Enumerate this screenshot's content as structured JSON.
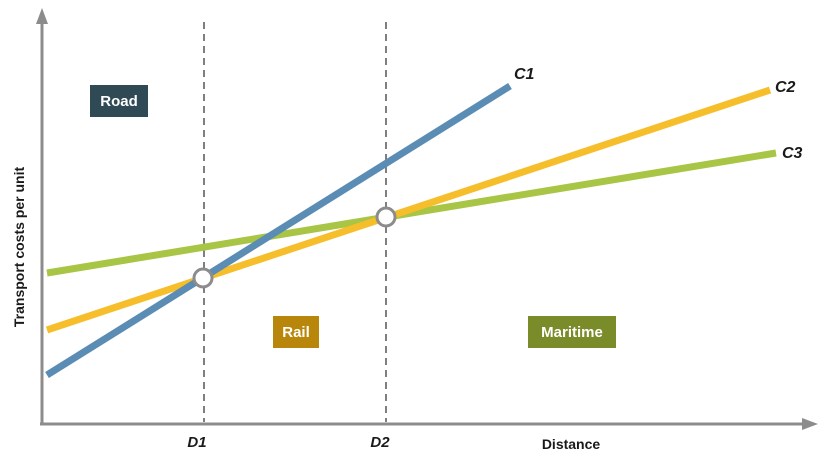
{
  "axes": {
    "y_title": "Transport costs per unit",
    "x_title": "Distance",
    "x_ticks": [
      "D1",
      "D2"
    ]
  },
  "zones": [
    {
      "label": "Road",
      "color": "#2f4a55"
    },
    {
      "label": "Rail",
      "color": "#b8860b"
    },
    {
      "label": "Maritime",
      "color": "#7a8b2a"
    }
  ],
  "curves": [
    {
      "label": "C1",
      "color": "#5a8cb4"
    },
    {
      "label": "C2",
      "color": "#f5be2a"
    },
    {
      "label": "C3",
      "color": "#a8c545"
    }
  ],
  "colors": {
    "axis": "#8c8c8c",
    "guide": "#555555",
    "marker_stroke": "#8c8c8c",
    "marker_fill": "#ffffff"
  }
}
